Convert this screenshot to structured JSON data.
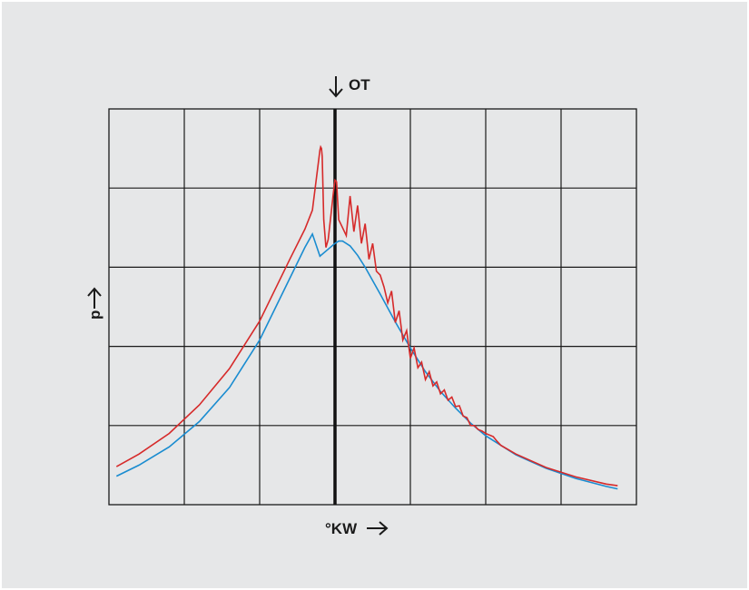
{
  "chart_data": {
    "type": "line",
    "title": "",
    "xlabel": "°KW",
    "ylabel": "p",
    "marker_label": "OT",
    "grid": true,
    "legend": "none",
    "xlim": [
      -3,
      4
    ],
    "ylim": [
      0,
      5
    ],
    "marker_x": 0,
    "colors": {
      "motored": "#1a8cd0",
      "combustion": "#d62a2a",
      "grid": "#1a1a1a",
      "background": "#e6e7e8"
    },
    "series": [
      {
        "key": "motored",
        "x": [
          -2.9,
          -2.6,
          -2.2,
          -1.8,
          -1.4,
          -1.0,
          -0.8,
          -0.6,
          -0.4,
          -0.3,
          -0.2,
          -0.1,
          0.0,
          0.05,
          0.1,
          0.2,
          0.3,
          0.4,
          0.6,
          0.8,
          1.0,
          1.2,
          1.4,
          1.6,
          1.8,
          2.0,
          2.4,
          2.8,
          3.2,
          3.6,
          3.75
        ],
        "y": [
          0.36,
          0.5,
          0.73,
          1.05,
          1.48,
          2.08,
          2.47,
          2.86,
          3.25,
          3.42,
          3.14,
          3.22,
          3.3,
          3.33,
          3.33,
          3.27,
          3.15,
          3.0,
          2.66,
          2.31,
          1.98,
          1.68,
          1.43,
          1.22,
          1.03,
          0.87,
          0.63,
          0.46,
          0.33,
          0.23,
          0.2
        ]
      },
      {
        "key": "combustion",
        "x": [
          -2.9,
          -2.6,
          -2.2,
          -1.8,
          -1.4,
          -1.0,
          -0.8,
          -0.6,
          -0.4,
          -0.3,
          -0.2,
          -0.19,
          -0.18,
          -0.17,
          -0.15,
          -0.12,
          -0.09,
          -0.05,
          -0.02,
          0.0,
          0.02,
          0.05,
          0.1,
          0.15,
          0.2,
          0.25,
          0.3,
          0.35,
          0.4,
          0.45,
          0.5,
          0.55,
          0.6,
          0.65,
          0.7,
          0.75,
          0.8,
          0.85,
          0.9,
          0.95,
          1.0,
          1.05,
          1.1,
          1.15,
          1.2,
          1.25,
          1.3,
          1.35,
          1.4,
          1.45,
          1.5,
          1.55,
          1.6,
          1.65,
          1.7,
          1.75,
          1.8,
          1.85,
          1.9,
          1.95,
          2.0,
          2.05,
          2.1,
          2.15,
          2.2,
          2.4,
          2.8,
          3.2,
          3.6,
          3.75
        ],
        "y": [
          0.48,
          0.64,
          0.9,
          1.26,
          1.72,
          2.32,
          2.71,
          3.1,
          3.48,
          3.72,
          4.48,
          4.52,
          4.5,
          4.4,
          3.6,
          3.25,
          3.35,
          3.7,
          3.95,
          4.1,
          4.08,
          3.6,
          3.5,
          3.4,
          3.9,
          3.45,
          3.78,
          3.3,
          3.55,
          3.1,
          3.3,
          2.95,
          2.9,
          2.75,
          2.55,
          2.7,
          2.3,
          2.45,
          2.08,
          2.2,
          1.85,
          1.98,
          1.73,
          1.8,
          1.58,
          1.68,
          1.5,
          1.55,
          1.4,
          1.45,
          1.32,
          1.36,
          1.24,
          1.25,
          1.12,
          1.1,
          1.0,
          1.0,
          0.95,
          0.93,
          0.9,
          0.88,
          0.86,
          0.8,
          0.75,
          0.64,
          0.47,
          0.35,
          0.26,
          0.24
        ]
      }
    ]
  }
}
